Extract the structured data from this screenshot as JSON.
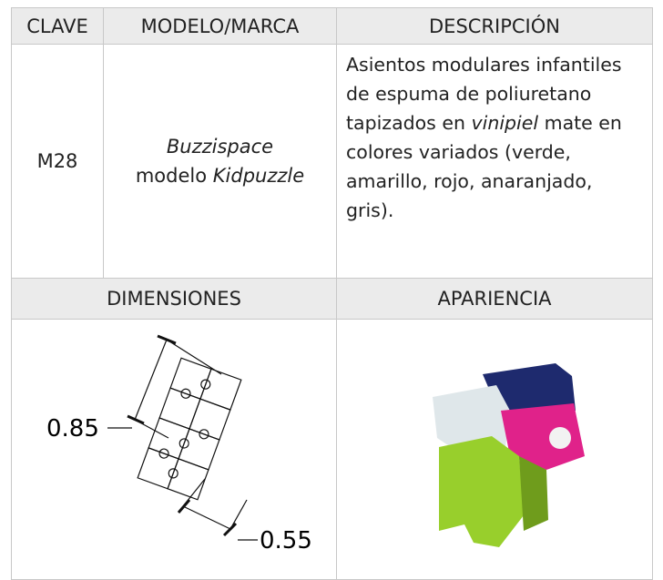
{
  "table": {
    "headers": [
      "CLAVE",
      "MODELO/MARCA",
      "DESCRIPCIÓN"
    ],
    "row": {
      "clave": "M28",
      "modelo": [
        "Buzzispace",
        "modelo",
        "Kidpuzzle"
      ],
      "descripcion": [
        "Asientos modulares infantiles de espuma de poliuretano tapizados en",
        "vinipiel",
        "mate en colores variados (verde, amarillo, rojo, anaranjado, gris)."
      ]
    },
    "section_headers": [
      "DIMENSIONES",
      "APARIENCIA"
    ],
    "dimensions": {
      "depth": "0.85",
      "width": "0.55"
    }
  }
}
